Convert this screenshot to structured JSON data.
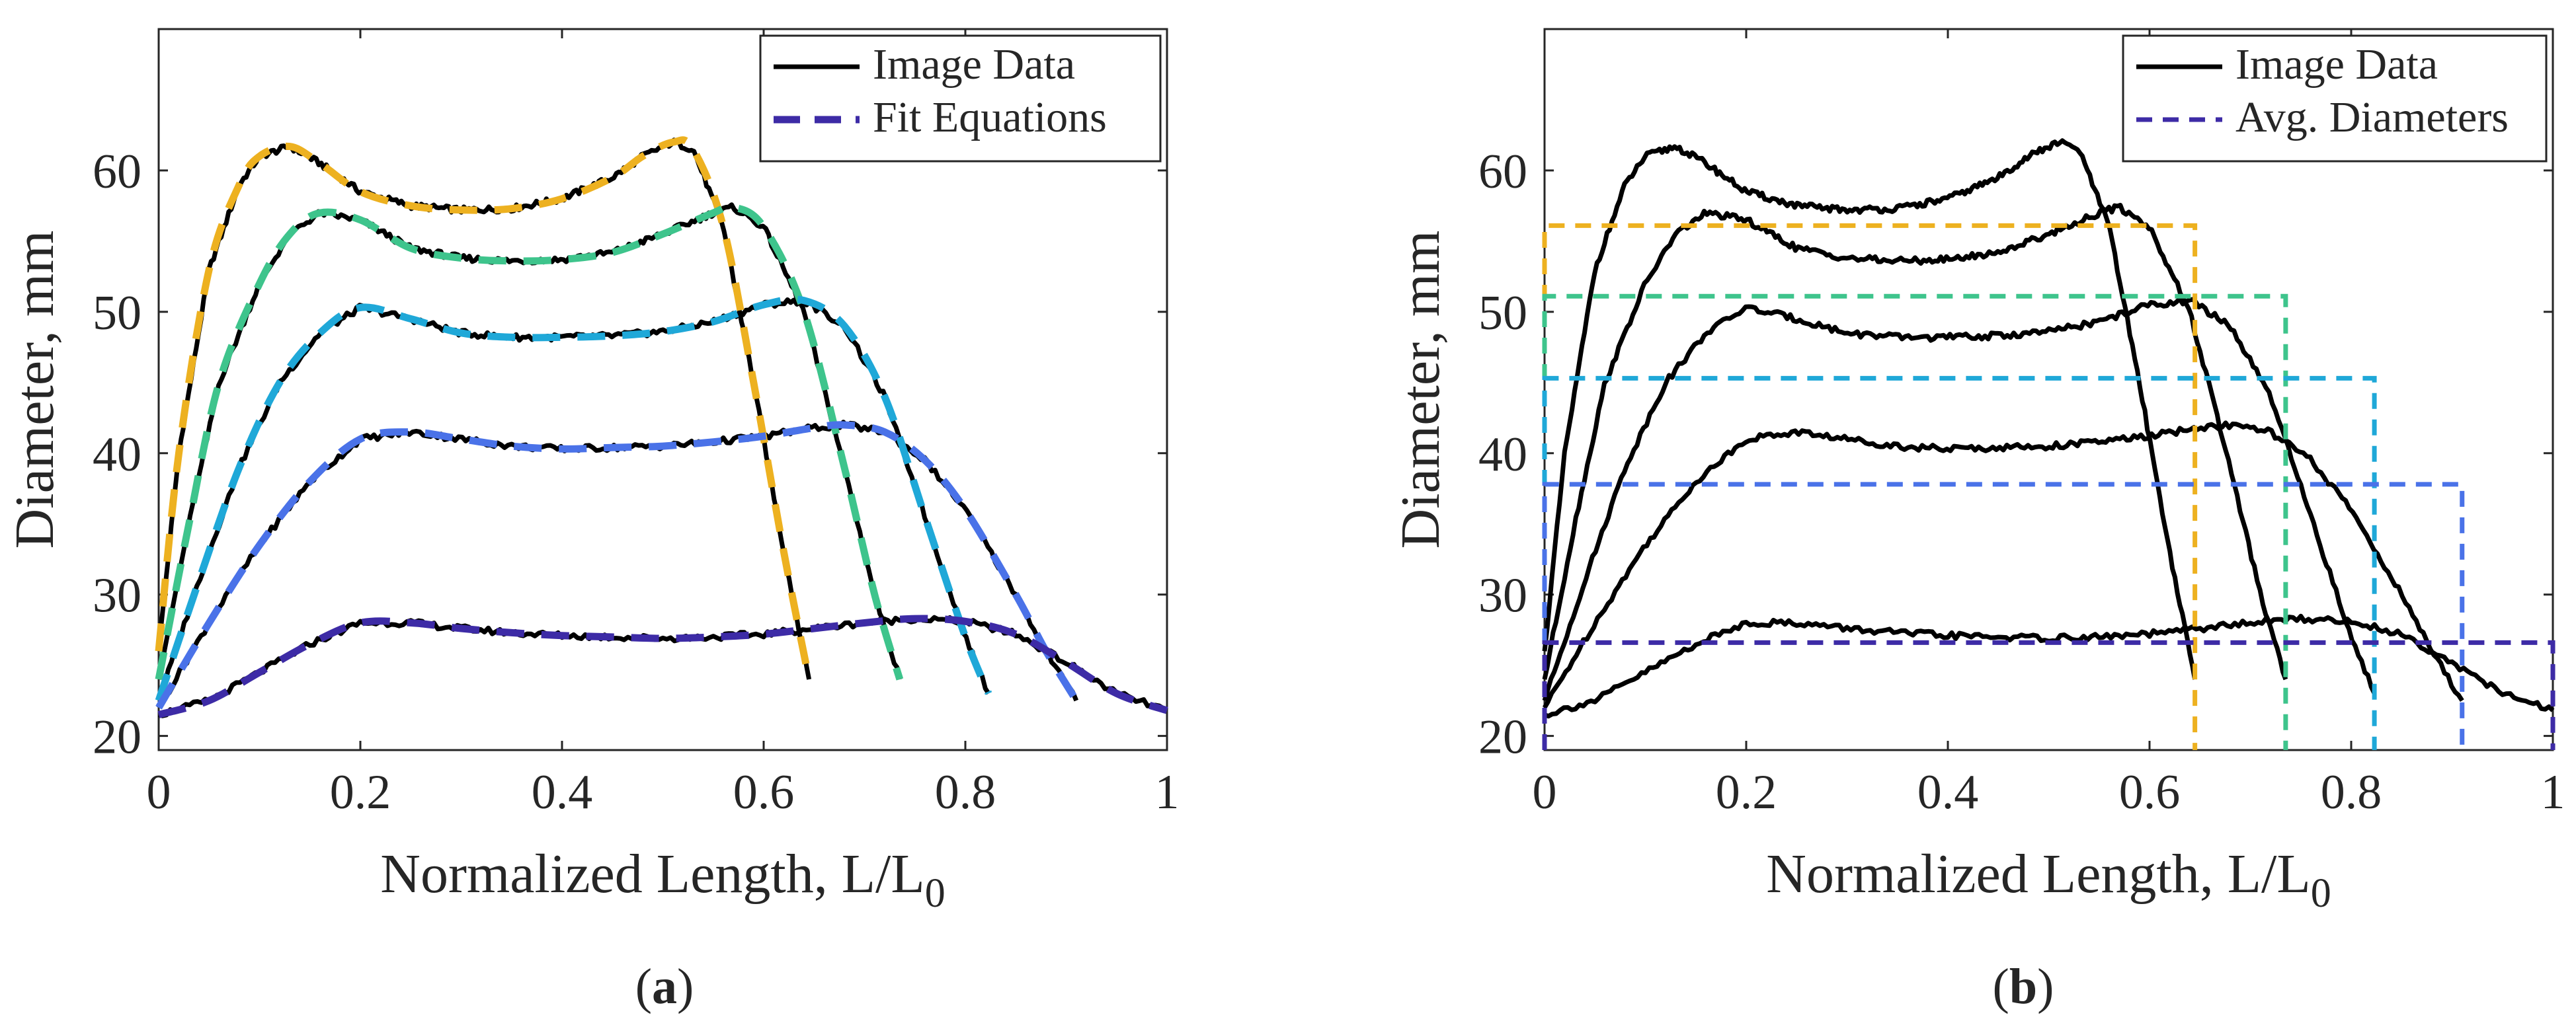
{
  "figure": {
    "captions": [
      "a",
      "b"
    ]
  },
  "colors": {
    "image_data": "#000000",
    "series": [
      "#EDB120",
      "#3EC48C",
      "#1FA8D8",
      "#4A72E8",
      "#3D2BA6"
    ],
    "axes": "#262626"
  },
  "chart_data": [
    {
      "type": "line",
      "panel": "a",
      "xlabel": "Normalized Length, L/L",
      "xlabel_subscript": "0",
      "ylabel": "Diameter, mm",
      "xlim": [
        0,
        1
      ],
      "ylim": [
        19,
        70
      ],
      "xticks": [
        0,
        0.2,
        0.4,
        0.6,
        0.8,
        1
      ],
      "xtick_labels": [
        "0",
        "0.2",
        "0.4",
        "0.6",
        "0.8",
        "1"
      ],
      "yticks": [
        20,
        30,
        40,
        50,
        60
      ],
      "ytick_labels": [
        "20",
        "30",
        "40",
        "50",
        "60"
      ],
      "grid": false,
      "legend_position": "top-right",
      "legend": [
        {
          "label": "Image Data",
          "style": "solid"
        },
        {
          "label": "Fit Equations",
          "style": "dashed"
        }
      ],
      "series": [
        {
          "x": [
            0,
            0.02,
            0.05,
            0.08,
            0.1,
            0.13,
            0.16,
            0.2,
            0.25,
            0.3,
            0.35,
            0.4,
            0.45,
            0.48,
            0.51,
            0.53,
            0.56,
            0.59,
            0.62,
            0.645
          ],
          "y": [
            26,
            40,
            53,
            59,
            61,
            61.7,
            60.5,
            58.5,
            57.5,
            57.2,
            57.3,
            58,
            59.5,
            61,
            62,
            61.5,
            56,
            45,
            33,
            24
          ]
        },
        {
          "x": [
            0,
            0.03,
            0.06,
            0.1,
            0.13,
            0.16,
            0.2,
            0.25,
            0.3,
            0.35,
            0.4,
            0.45,
            0.5,
            0.55,
            0.57,
            0.6,
            0.64,
            0.68,
            0.71,
            0.735
          ],
          "y": [
            24,
            35,
            45,
            52,
            55.5,
            57,
            56.5,
            54.5,
            53.8,
            53.6,
            53.7,
            54.2,
            55.5,
            57,
            57.4,
            56,
            50,
            39,
            30,
            24
          ]
        },
        {
          "x": [
            0,
            0.04,
            0.08,
            0.12,
            0.16,
            0.2,
            0.25,
            0.3,
            0.35,
            0.4,
            0.45,
            0.5,
            0.55,
            0.6,
            0.64,
            0.68,
            0.72,
            0.76,
            0.8,
            0.823
          ],
          "y": [
            22.5,
            31,
            39,
            45,
            48.5,
            50.3,
            49.5,
            48.5,
            48.2,
            48.2,
            48.3,
            48.6,
            49.3,
            50.5,
            50.8,
            49,
            44,
            35.5,
            27,
            23
          ]
        },
        {
          "x": [
            0,
            0.05,
            0.1,
            0.15,
            0.2,
            0.25,
            0.3,
            0.35,
            0.4,
            0.45,
            0.5,
            0.55,
            0.6,
            0.65,
            0.68,
            0.72,
            0.76,
            0.8,
            0.85,
            0.88,
            0.91
          ],
          "y": [
            22,
            28,
            33.5,
            38,
            41,
            41.5,
            41,
            40.5,
            40.3,
            40.4,
            40.5,
            40.8,
            41.2,
            41.8,
            42,
            41.5,
            39.5,
            36,
            30,
            26,
            22.5
          ]
        },
        {
          "x": [
            0,
            0.05,
            0.1,
            0.15,
            0.2,
            0.25,
            0.3,
            0.35,
            0.4,
            0.45,
            0.5,
            0.55,
            0.6,
            0.65,
            0.7,
            0.75,
            0.8,
            0.85,
            0.9,
            0.95,
            1
          ],
          "y": [
            21.5,
            22.5,
            24.5,
            26.5,
            28,
            28,
            27.6,
            27.3,
            27.1,
            27,
            26.9,
            27,
            27.2,
            27.6,
            28,
            28.3,
            28.1,
            27.2,
            25.2,
            23,
            21.8
          ]
        }
      ]
    },
    {
      "type": "line",
      "panel": "b",
      "xlabel": "Normalized Length, L/L",
      "xlabel_subscript": "0",
      "ylabel": "Diameter, mm",
      "xlim": [
        0,
        1
      ],
      "ylim": [
        19,
        70
      ],
      "xticks": [
        0,
        0.2,
        0.4,
        0.6,
        0.8,
        1
      ],
      "xtick_labels": [
        "0",
        "0.2",
        "0.4",
        "0.6",
        "0.8",
        "1"
      ],
      "yticks": [
        20,
        30,
        40,
        50,
        60
      ],
      "ytick_labels": [
        "20",
        "30",
        "40",
        "50",
        "60"
      ],
      "grid": false,
      "legend_position": "top-right",
      "legend": [
        {
          "label": "Image Data",
          "style": "solid"
        },
        {
          "label": "Avg. Diameters",
          "style": "dotted"
        }
      ],
      "avg_diameters": [
        {
          "diameter": 56.1,
          "x_end": 0.645
        },
        {
          "diameter": 51.1,
          "x_end": 0.735
        },
        {
          "diameter": 45.3,
          "x_end": 0.823
        },
        {
          "diameter": 37.8,
          "x_end": 0.91
        },
        {
          "diameter": 26.6,
          "x_end": 1.0
        }
      ]
    }
  ]
}
